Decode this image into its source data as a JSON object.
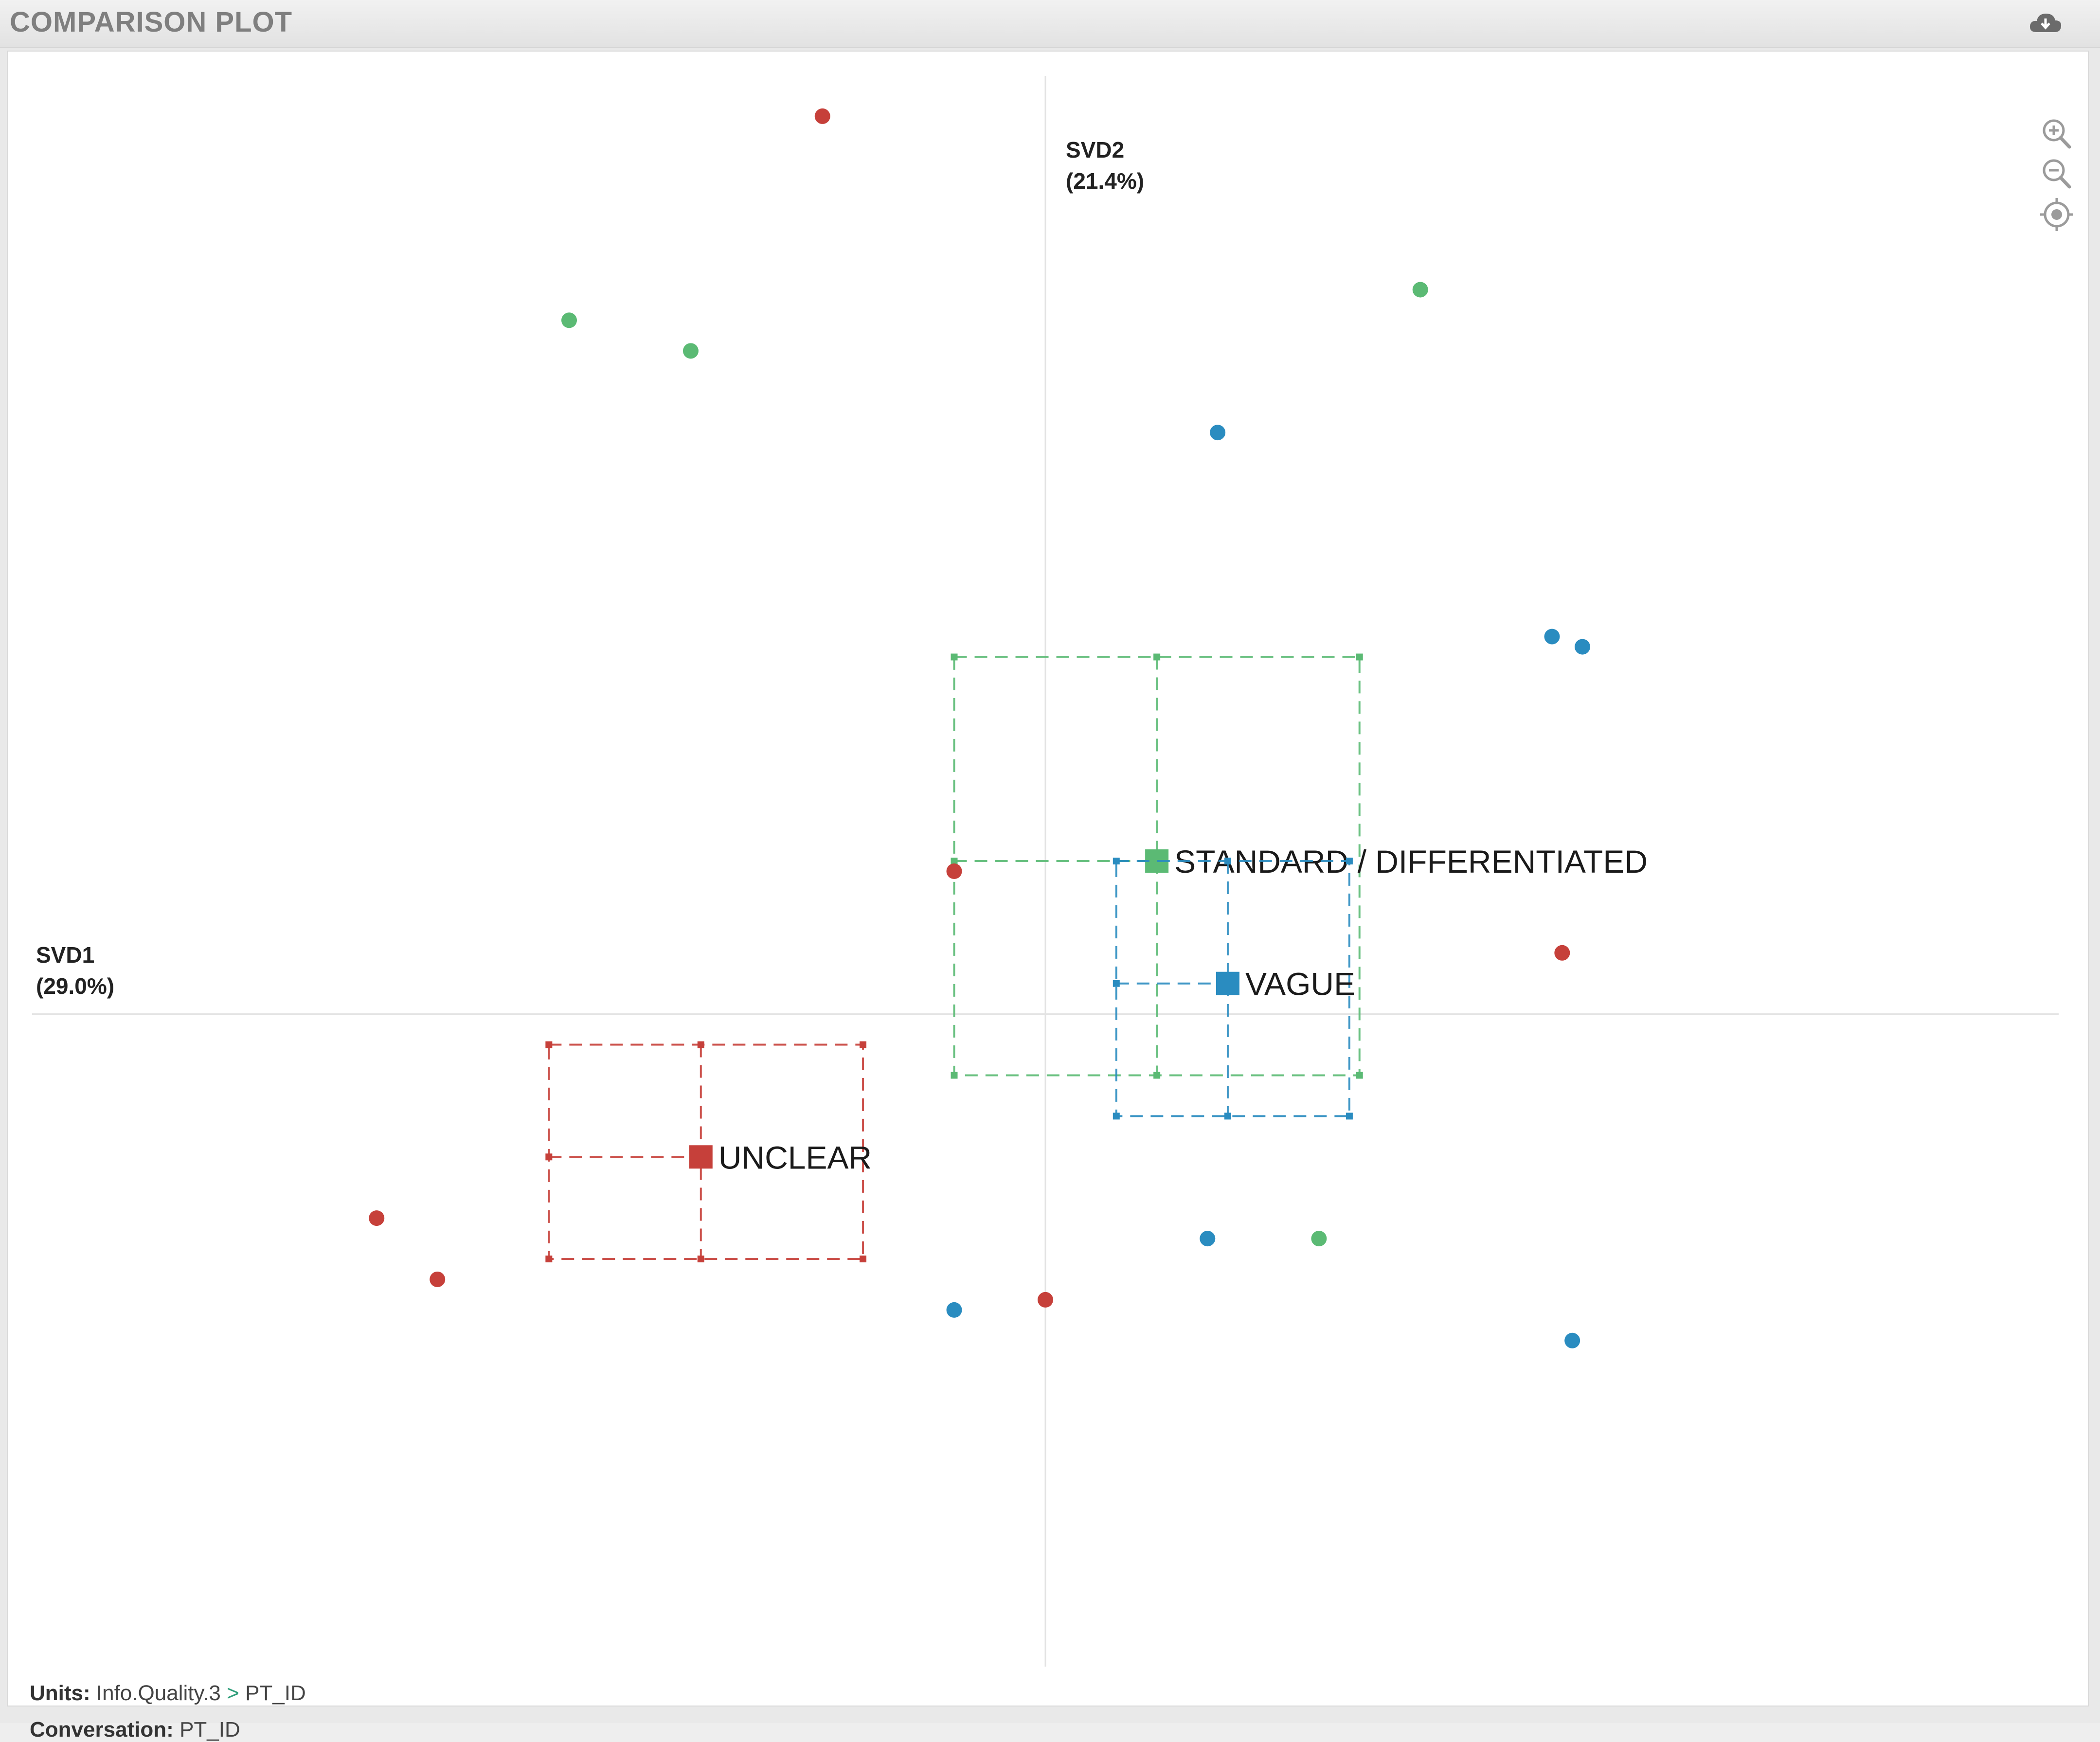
{
  "panel": {
    "title": "COMPARISON PLOT",
    "download_icon": "cloud-download-icon"
  },
  "toolbar": {
    "zoom_in_icon": "zoom-in-icon",
    "zoom_out_icon": "zoom-out-icon",
    "recenter_icon": "target-icon"
  },
  "axes": {
    "svd2": {
      "name": "SVD2",
      "pct": "(21.4%)"
    },
    "svd1": {
      "name": "SVD1",
      "pct": "(29.0%)"
    }
  },
  "footer": {
    "units_label": "Units:",
    "units_path_1": "Info.Quality.3",
    "units_sep": ">",
    "units_path_2": "PT_ID",
    "conversation_label": "Conversation:",
    "conversation_value": "PT_ID"
  },
  "colors": {
    "red": "#c6403a",
    "green": "#5bba74",
    "blue": "#2a8cc0",
    "axis_line": "#e3e3e3"
  },
  "chart_data": {
    "type": "scatter",
    "xlabel": "SVD1 (29.0%)",
    "ylabel": "SVD2 (21.4%)",
    "xlim": [
      -1.0,
      1.0
    ],
    "ylim": [
      -0.63,
      0.91
    ],
    "grid": false,
    "series": [
      {
        "name": "UNCLEAR",
        "color": "red",
        "points": [
          [
            -0.22,
            0.88
          ],
          [
            -0.09,
            0.14
          ],
          [
            -0.66,
            -0.2
          ],
          [
            -0.6,
            -0.26
          ],
          [
            0.0,
            -0.28
          ],
          [
            0.51,
            0.06
          ]
        ],
        "centroid": [
          -0.34,
          -0.14
        ],
        "box_x": [
          -0.49,
          -0.18
        ],
        "box_y": [
          -0.24,
          -0.03
        ]
      },
      {
        "name": "STANDARD / DIFFERENTIATED",
        "color": "green",
        "points": [
          [
            -0.47,
            0.68
          ],
          [
            -0.35,
            0.65
          ],
          [
            0.37,
            0.71
          ],
          [
            0.27,
            -0.22
          ]
        ],
        "centroid": [
          0.11,
          0.15
        ],
        "box_x": [
          -0.09,
          0.31
        ],
        "box_y": [
          -0.06,
          0.35
        ]
      },
      {
        "name": "VAGUE",
        "color": "blue",
        "points": [
          [
            0.17,
            0.57
          ],
          [
            0.5,
            0.37
          ],
          [
            0.53,
            0.36
          ],
          [
            0.16,
            -0.22
          ],
          [
            -0.09,
            -0.29
          ],
          [
            0.52,
            -0.32
          ]
        ],
        "centroid": [
          0.18,
          0.03
        ],
        "box_x": [
          0.07,
          0.3
        ],
        "box_y": [
          -0.1,
          0.15
        ]
      }
    ]
  }
}
